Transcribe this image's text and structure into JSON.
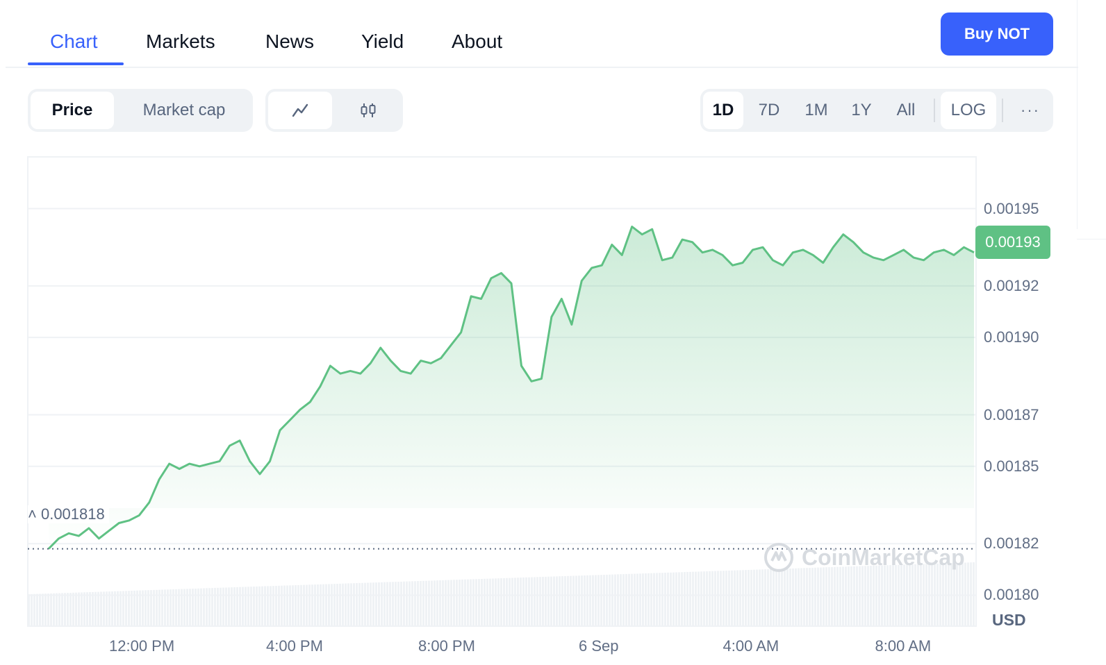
{
  "tabs": [
    {
      "label": "Chart"
    },
    {
      "label": "Markets"
    },
    {
      "label": "News"
    },
    {
      "label": "Yield"
    },
    {
      "label": "About"
    }
  ],
  "buy_button": "Buy NOT",
  "metric_toggle": {
    "price": "Price",
    "market_cap": "Market cap"
  },
  "chart_style_icons": [
    "line-chart-icon",
    "candlestick-icon"
  ],
  "ranges": [
    "1D",
    "7D",
    "1M",
    "1Y",
    "All"
  ],
  "log_label": "LOG",
  "more_label": "···",
  "currency": "USD",
  "open_price_label": "0.001818",
  "watermark": "CoinMarketCap",
  "colors": {
    "accent": "#3861fb",
    "up": "#5fc184"
  },
  "chart_data": {
    "type": "area",
    "x_ticks": [
      "12:00 PM",
      "4:00 PM",
      "8:00 PM",
      "6 Sep",
      "4:00 AM",
      "8:00 AM"
    ],
    "y_ticks": [
      "0.00195",
      "0.00192",
      "0.00190",
      "0.00187",
      "0.00185",
      "0.00182",
      "0.00180"
    ],
    "current_price": "0.00193",
    "open_price": 0.001818,
    "ylim": [
      0.001788,
      0.001969
    ],
    "values": [
      0.001818,
      0.001822,
      0.001824,
      0.001823,
      0.001826,
      0.001822,
      0.001825,
      0.001828,
      0.001829,
      0.001831,
      0.001836,
      0.001845,
      0.001851,
      0.001849,
      0.001851,
      0.00185,
      0.001851,
      0.001852,
      0.001858,
      0.00186,
      0.001852,
      0.001847,
      0.001852,
      0.001864,
      0.001868,
      0.001872,
      0.001875,
      0.001881,
      0.001889,
      0.001886,
      0.001887,
      0.001886,
      0.00189,
      0.001896,
      0.001891,
      0.001887,
      0.001886,
      0.001891,
      0.00189,
      0.001892,
      0.001897,
      0.001902,
      0.001916,
      0.001915,
      0.001923,
      0.001925,
      0.001921,
      0.001889,
      0.001883,
      0.001884,
      0.001908,
      0.001915,
      0.001905,
      0.001922,
      0.001927,
      0.001928,
      0.001936,
      0.001932,
      0.001943,
      0.00194,
      0.001942,
      0.00193,
      0.001931,
      0.001938,
      0.001937,
      0.001933,
      0.001934,
      0.001932,
      0.001928,
      0.001929,
      0.001934,
      0.001935,
      0.00193,
      0.001928,
      0.001933,
      0.001934,
      0.001932,
      0.001929,
      0.001935,
      0.00194,
      0.001937,
      0.001933,
      0.001931,
      0.00193,
      0.001932,
      0.001934,
      0.001931,
      0.00193,
      0.001933,
      0.001934,
      0.001932,
      0.001935,
      0.001933
    ],
    "volume_note": "volume bars"
  }
}
